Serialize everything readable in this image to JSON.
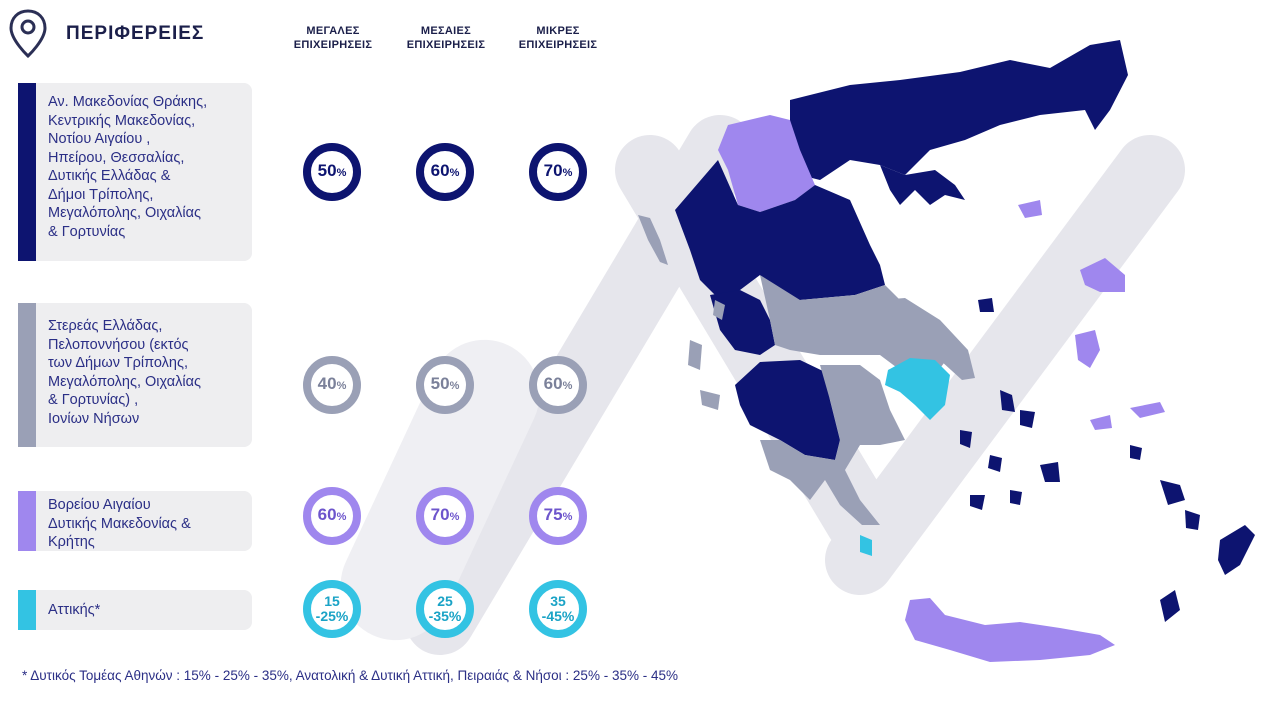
{
  "header": {
    "title": "ΠΕΡΙΦΕΡΕΙΕΣ",
    "icon": "map-pin-icon",
    "columns": [
      [
        "ΜΕΓΑΛΕΣ",
        "ΕΠΙΧΕΙΡΗΣΕΙΣ"
      ],
      [
        "ΜΕΣΑΙΕΣ",
        "ΕΠΙΧΕΙΡΗΣΕΙΣ"
      ],
      [
        "ΜΙΚΡΕΣ",
        "ΕΠΙΧΕΙΡΗΣΕΙΣ"
      ]
    ]
  },
  "colors": {
    "navy": "#0d1470",
    "gray": "#9aa0b6",
    "purple": "#9f87ee",
    "cyan": "#33c3e3"
  },
  "groups": [
    {
      "color": "navy",
      "label_lines": [
        "Αν. Μακεδονίας Θράκης,",
        "Κεντρικής Μακεδονίας,",
        "Νοτίου Αιγαίου ,",
        "Ηπείρου, Θεσσαλίας,",
        "Δυτικής Ελλάδας &",
        "Δήμοι Τρίπολης,",
        "Μεγαλόπολης, Οιχαλίας",
        "& Γορτυνίας"
      ],
      "values": [
        {
          "main": "50",
          "unit": "%"
        },
        {
          "main": "60",
          "unit": "%"
        },
        {
          "main": "70",
          "unit": "%"
        }
      ]
    },
    {
      "color": "gray",
      "label_lines": [
        "Στερεάς Ελλάδας,",
        "Πελοποννήσου (εκτός",
        "των Δήμων Τρίπολης,",
        "Μεγαλόπολης, Οιχαλίας",
        "& Γορτυνίας) ,",
        "Ιονίων Νήσων"
      ],
      "values": [
        {
          "main": "40",
          "unit": "%"
        },
        {
          "main": "50",
          "unit": "%"
        },
        {
          "main": "60",
          "unit": "%"
        }
      ]
    },
    {
      "color": "purple",
      "label_lines": [
        "Βορείου Αιγαίου",
        "Δυτικής Μακεδονίας &",
        "Κρήτης"
      ],
      "values": [
        {
          "main": "60",
          "unit": "%"
        },
        {
          "main": "70",
          "unit": "%"
        },
        {
          "main": "75",
          "unit": "%"
        }
      ]
    },
    {
      "color": "cyan",
      "label_lines": [
        "Αττικής*"
      ],
      "values": [
        {
          "top": "15",
          "bottom": "-25%"
        },
        {
          "top": "25",
          "bottom": "-35%"
        },
        {
          "top": "35",
          "bottom": "-45%"
        }
      ]
    }
  ],
  "footnote": "* Δυτικός Τομέας Αθηνών : 15% - 25% - 35%, Ανατολική & Δυτική Αττική, Πειραιάς & Νήσοι : 25% - 35% - 45%"
}
